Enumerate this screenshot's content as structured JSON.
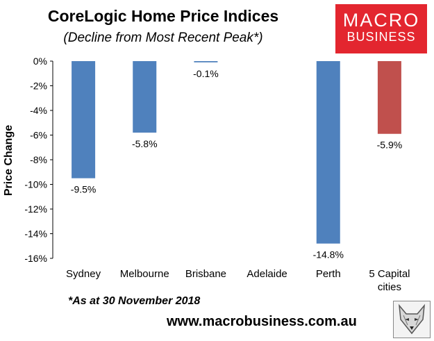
{
  "header": {
    "title": "CoreLogic Home Price Indices",
    "subtitle": "(Decline from Most Recent Peak*)"
  },
  "logo": {
    "line1": "MACRO",
    "line2": "BUSINESS",
    "color": "#e3262f"
  },
  "footnote": "*As at 30 November 2018",
  "website": "www.macrobusiness.com.au",
  "colors": {
    "bar": "#4f81bd",
    "highlight": "#c0504d"
  },
  "chart_data": {
    "type": "bar",
    "title": "CoreLogic Home Price Indices",
    "subtitle": "(Decline from Most Recent Peak*)",
    "xlabel": "",
    "ylabel": "Price Change",
    "categories": [
      "Sydney",
      "Melbourne",
      "Brisbane",
      "Adelaide",
      "Perth",
      "5 Capital cities"
    ],
    "values": [
      -9.5,
      -5.8,
      -0.1,
      null,
      -14.8,
      -5.9
    ],
    "data_labels": [
      "-9.5%",
      "-5.8%",
      "-0.1%",
      "",
      "-14.8%",
      "-5.9%"
    ],
    "highlight_index": 5,
    "ylim": [
      -16,
      0
    ],
    "yticks": [
      0,
      -2,
      -4,
      -6,
      -8,
      -10,
      -12,
      -14,
      -16
    ],
    "ytick_labels": [
      "0%",
      "-2%",
      "-4%",
      "-6%",
      "-8%",
      "-10%",
      "-12%",
      "-14%",
      "-16%"
    ],
    "grid": false,
    "legend": "none"
  }
}
